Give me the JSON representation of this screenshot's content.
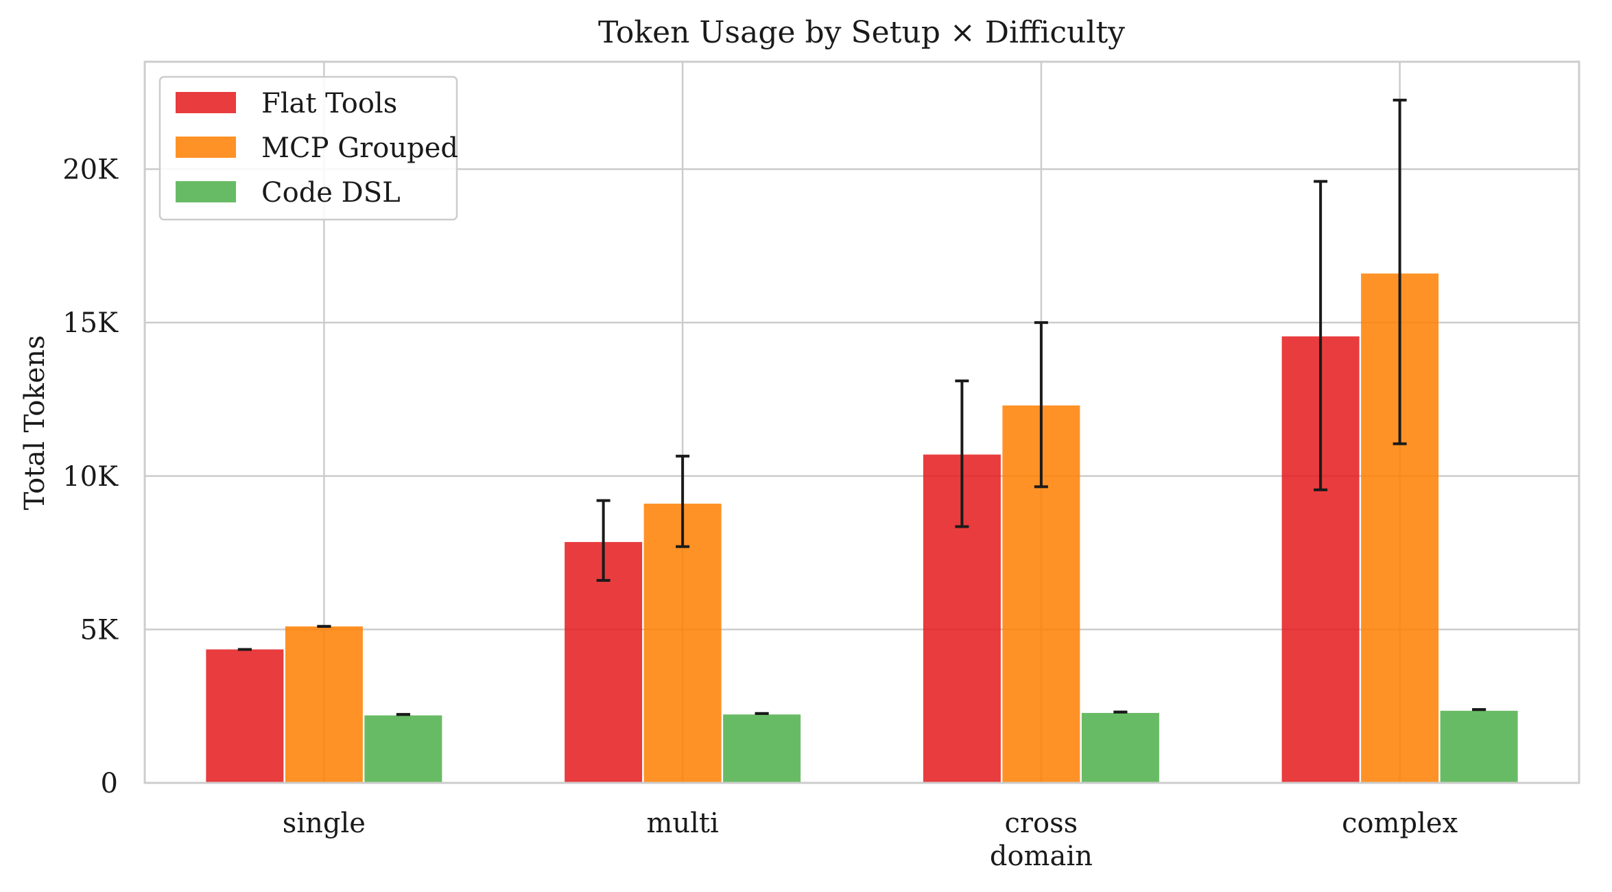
{
  "chart_data": {
    "type": "bar",
    "title": "Token Usage by Setup × Difficulty",
    "xlabel": "",
    "ylabel": "Total Tokens",
    "categories": [
      [
        "single"
      ],
      [
        "multi"
      ],
      [
        "cross",
        "domain"
      ],
      [
        "complex"
      ]
    ],
    "ylim": [
      0,
      23500
    ],
    "yticks": [
      {
        "value": 0,
        "label": "0"
      },
      {
        "value": 5000,
        "label": "5K"
      },
      {
        "value": 10000,
        "label": "10K"
      },
      {
        "value": 15000,
        "label": "15K"
      },
      {
        "value": 20000,
        "label": "20K"
      }
    ],
    "grid": true,
    "legend_position": "top-left",
    "series": [
      {
        "name": "Flat Tools",
        "color": "#e41a1c",
        "values": [
          4350,
          7850,
          10700,
          14550
        ],
        "error": [
          [
            4350,
            4350
          ],
          [
            6600,
            9200
          ],
          [
            8350,
            13100
          ],
          [
            9550,
            19600
          ]
        ]
      },
      {
        "name": "MCP Grouped",
        "color": "#ff7f00",
        "values": [
          5100,
          9100,
          12300,
          16600
        ],
        "error": [
          [
            5100,
            5100
          ],
          [
            7700,
            10650
          ],
          [
            9650,
            15000
          ],
          [
            11050,
            22250
          ]
        ]
      },
      {
        "name": "Code DSL",
        "color": "#4daf4a",
        "values": [
          2200,
          2230,
          2280,
          2350
        ],
        "error": [
          [
            2230,
            2230
          ],
          [
            2260,
            2260
          ],
          [
            2310,
            2310
          ],
          [
            2390,
            2390
          ]
        ]
      }
    ]
  }
}
